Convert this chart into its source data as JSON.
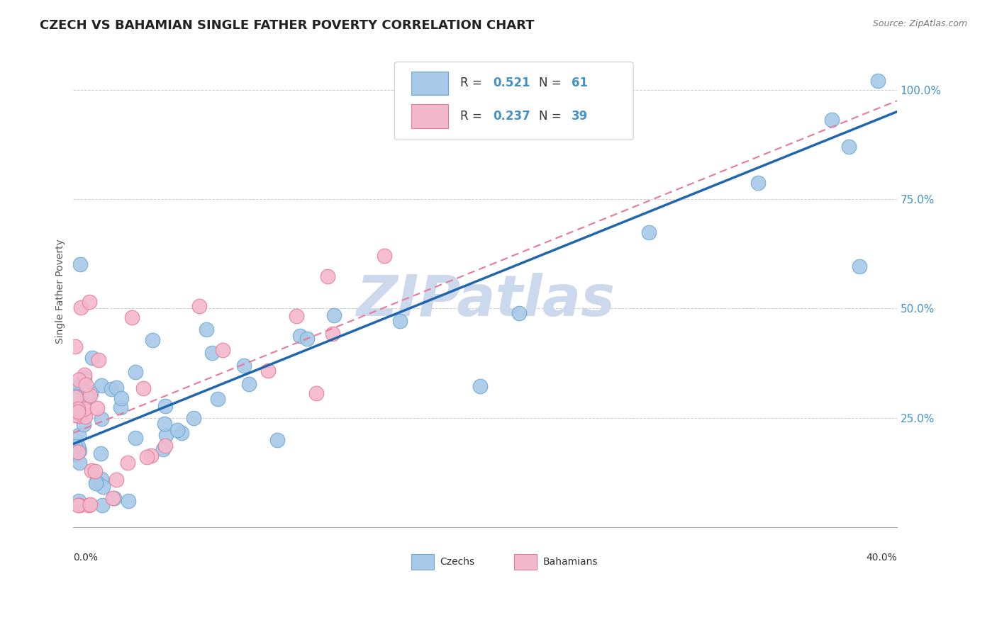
{
  "title": "CZECH VS BAHAMIAN SINGLE FATHER POVERTY CORRELATION CHART",
  "source": "Source: ZipAtlas.com",
  "ylabel": "Single Father Poverty",
  "czech_color": "#a8c8e8",
  "czech_edge_color": "#6aaad4",
  "bahamian_color": "#f4b8cc",
  "bahamian_edge_color": "#e87898",
  "czech_line_color": "#2166ac",
  "bahamian_line_color": "#e87898",
  "watermark_color": "#d0dff0",
  "background_color": "#ffffff",
  "grid_color": "#cccccc",
  "title_fontsize": 13,
  "ytick_color": "#4292c6",
  "annotation_color": "#333333"
}
